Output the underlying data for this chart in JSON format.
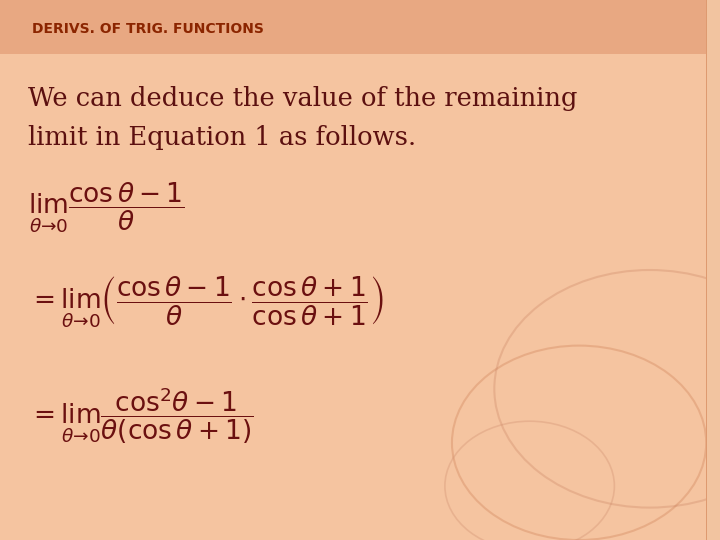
{
  "title_text": "DERIVS. OF TRIG. FUNCTIONS",
  "title_color": "#8B2500",
  "title_bg_color": "#E8A080",
  "body_text": "We can deduce the value of the remaining\nlimit in Equation 1 as follows.",
  "body_color": "#5C1010",
  "eq1": "$\\lim_{\\theta \\to 0} \\dfrac{\\cos\\theta - 1}{\\theta}$",
  "eq2": "$= \\lim_{\\theta \\to 0} \\left( \\dfrac{\\cos\\theta - 1}{\\theta} \\cdot \\dfrac{\\cos\\theta + 1}{\\cos\\theta + 1} \\right)$",
  "eq3": "$= \\lim_{\\theta \\to 0} \\dfrac{\\cos^2\\theta - 1}{\\theta(\\cos\\theta + 1)}$",
  "eq_color": "#6B1010",
  "bg_color_top": "#F5C9A8",
  "bg_color_bottom": "#F0B898"
}
